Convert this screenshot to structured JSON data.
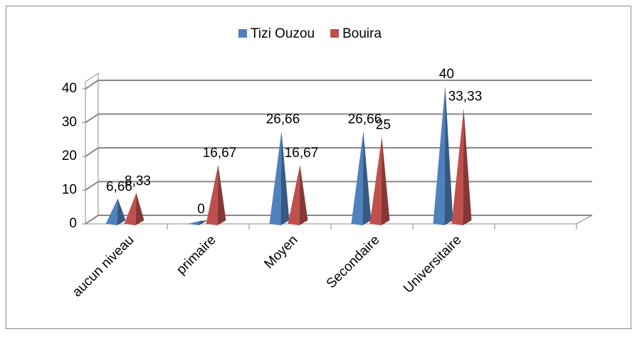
{
  "chart_data": {
    "type": "pyramid3d",
    "categories": [
      "aucun niveau",
      "primaire",
      "Moyen",
      "Secondaire",
      "Universitaire",
      null
    ],
    "series": [
      {
        "name": "Tizi Ouzou",
        "color": "#4f81bd",
        "values": [
          6.66,
          0,
          26.66,
          26.66,
          40,
          null
        ],
        "value_labels": [
          "6,66",
          "0",
          "26,66",
          "26,66",
          "40",
          null
        ]
      },
      {
        "name": "Bouira",
        "color": "#c0504d",
        "values": [
          8.33,
          16.67,
          16.67,
          25,
          33.33,
          null
        ],
        "value_labels": [
          "8,33",
          "16,67",
          "16,67",
          "25",
          "33,33",
          null
        ]
      }
    ],
    "ylim": [
      0,
      40
    ],
    "yticks": [
      0,
      10,
      20,
      30,
      40
    ],
    "grid": true,
    "legend": "top"
  }
}
